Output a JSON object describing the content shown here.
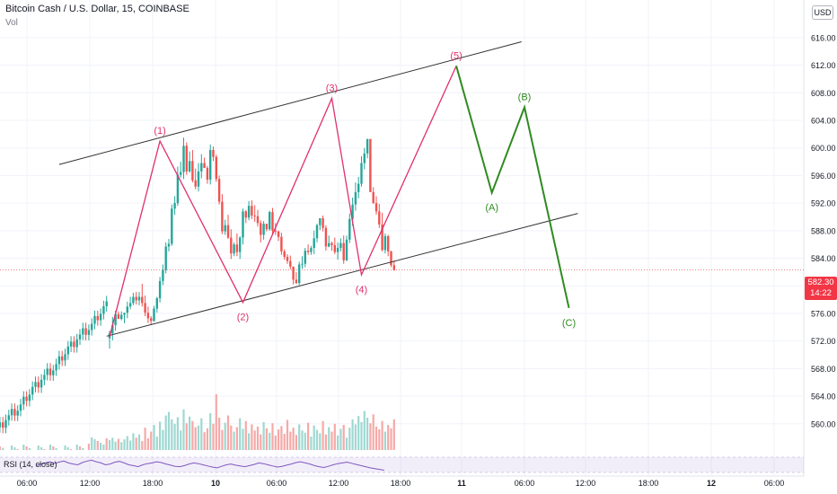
{
  "header": {
    "title": "Bitcoin Cash / U.S. Dollar, 15, COINBASE",
    "volume_label": "Vol",
    "currency": "USD"
  },
  "last_price": {
    "value": "582.30",
    "countdown": "14:22"
  },
  "rsi_label": "RSI (14, close)",
  "colors": {
    "up": "#26a69a",
    "down": "#ef5350",
    "pink": "#e0306c",
    "green": "#2f8a20",
    "channel": "#333333",
    "rsi": "#7e57c2"
  },
  "chart_data": {
    "type": "line",
    "y_axis": {
      "ylim": [
        557.5,
        619.5
      ],
      "ticks": [
        560,
        564,
        568,
        572,
        576,
        580,
        584,
        588,
        592,
        596,
        600,
        604,
        608,
        612,
        616
      ]
    },
    "x_axis": {
      "tick_labels": [
        "06:00",
        "12:00",
        "18:00",
        "10",
        "06:00",
        "12:00",
        "18:00",
        "11",
        "06:00",
        "12:00",
        "18:00",
        "12",
        "06:00"
      ]
    },
    "candles": {
      "opens": [
        572.4,
        573.1,
        574.3,
        575.9,
        575.2,
        575.8,
        576.1,
        577.0,
        577.5,
        578.4,
        577.9,
        578.4,
        577.5,
        576.1,
        575.3,
        574.9,
        576.7,
        578.2,
        580.7,
        582.3,
        585.7,
        586.1,
        591.2,
        592.0,
        596.1,
        596.5,
        600.3,
        596.6,
        598.1,
        595.3,
        594.4,
        596.6,
        597.8,
        597.1,
        595.4,
        599.7,
        598.7,
        595.5,
        592.2,
        587.9,
        588.8,
        587.0,
        584.7,
        586.0,
        584.9,
        587.0,
        590.8,
        589.9,
        591.6,
        590.2,
        590.1,
        589.1,
        587.4,
        589.0,
        588.2,
        590.7,
        588.0,
        587.9,
        587.1,
        585.0,
        584.2,
        583.6,
        582.8,
        580.9,
        580.4,
        583.1,
        583.2,
        585.1,
        584.9,
        585.5,
        586.9,
        588.8,
        589.8,
        588.4,
        585.7,
        586.2,
        585.9,
        584.9,
        585.5,
        586.2,
        583.7,
        586.7,
        589.7,
        591.8,
        593.6,
        594.8,
        597.8,
        599.2,
        601.3,
        593.6,
        592.0,
        590.8,
        588.9,
        585.2,
        587.2,
        585.0,
        583.0
      ],
      "highs": [
        573.5,
        575.5,
        576.4,
        576.3,
        576.3,
        576.1,
        577.7,
        578.4,
        579.0,
        579.1,
        579.1,
        580.3,
        578.6,
        577.0,
        575.6,
        577.1,
        578.4,
        581.3,
        583.1,
        586.3,
        586.8,
        591.8,
        593.0,
        597.3,
        598.0,
        601.5,
        600.8,
        599.5,
        599.7,
        597.0,
        597.8,
        599.1,
        598.6,
        597.4,
        600.5,
        600.2,
        599.0,
        596.0,
        593.3,
        589.6,
        590.3,
        588.2,
        586.3,
        587.6,
        587.2,
        591.2,
        591.0,
        592.3,
        592.4,
        591.7,
        591.0,
        589.5,
        589.4,
        589.0,
        590.9,
        591.3,
        589.1,
        588.0,
        587.7,
        585.3,
        584.6,
        584.4,
        582.8,
        582.0,
        583.5,
        584.3,
        585.5,
        586.0,
        585.8,
        588.0,
        589.0,
        589.8,
        590.2,
        588.8,
        587.3,
        586.4,
        587.0,
        586.3,
        586.9,
        587.3,
        587.3,
        590.5,
        592.8,
        595.0,
        595.8,
        598.8,
        600.0,
        601.3,
        601.3,
        594.3,
        593.0,
        591.9,
        590.6,
        587.6,
        587.4,
        585.1,
        583.7
      ],
      "lows": [
        570.9,
        572.1,
        573.5,
        575.2,
        575.0,
        574.6,
        575.3,
        576.6,
        577.2,
        577.3,
        577.2,
        577.0,
        575.6,
        574.6,
        574.3,
        574.8,
        576.1,
        577.6,
        580.1,
        581.8,
        585.0,
        585.8,
        590.3,
        591.6,
        595.7,
        595.5,
        596.1,
        596.4,
        595.0,
        594.0,
        593.7,
        595.6,
        597.1,
        594.8,
        594.7,
        598.1,
        595.1,
        591.8,
        587.5,
        587.4,
        586.8,
        583.9,
        584.3,
        584.3,
        583.9,
        586.0,
        589.1,
        589.5,
        589.7,
        589.3,
        588.6,
        586.3,
        586.7,
        587.9,
        588.0,
        587.4,
        587.4,
        586.5,
        584.5,
        583.8,
        583.2,
        582.4,
        580.2,
        580.3,
        580.1,
        582.5,
        582.7,
        584.5,
        584.5,
        584.6,
        586.3,
        588.1,
        587.9,
        585.1,
        585.6,
        585.1,
        584.6,
        583.8,
        585.0,
        583.2,
        583.6,
        586.2,
        588.7,
        590.9,
        592.7,
        594.4,
        596.9,
        598.5,
        593.6,
        591.9,
        590.3,
        588.4,
        585.0,
        584.7,
        584.3,
        582.7,
        582.2
      ],
      "closes": [
        573.1,
        574.3,
        575.9,
        575.2,
        575.8,
        576.1,
        577.0,
        577.5,
        578.4,
        577.9,
        578.4,
        577.5,
        576.1,
        575.3,
        574.9,
        576.7,
        578.2,
        580.7,
        582.3,
        585.7,
        586.1,
        591.2,
        592.0,
        596.1,
        596.5,
        600.3,
        596.6,
        598.1,
        595.3,
        594.4,
        596.6,
        597.8,
        597.1,
        595.4,
        599.7,
        598.7,
        595.5,
        592.2,
        587.9,
        588.8,
        587.0,
        584.7,
        586.0,
        584.9,
        587.0,
        590.8,
        589.9,
        591.6,
        590.2,
        590.1,
        589.1,
        587.4,
        589.0,
        588.2,
        590.7,
        588.0,
        587.9,
        587.1,
        585.0,
        584.2,
        583.6,
        582.8,
        580.9,
        580.4,
        583.1,
        583.2,
        585.1,
        584.9,
        585.5,
        586.9,
        588.8,
        589.8,
        588.4,
        585.7,
        586.2,
        585.9,
        584.9,
        585.5,
        586.2,
        583.7,
        586.7,
        589.7,
        591.8,
        593.6,
        594.8,
        597.8,
        599.2,
        601.3,
        593.6,
        592.0,
        590.8,
        588.9,
        585.2,
        587.2,
        585.0,
        583.0,
        582.3
      ]
    },
    "volume": [
      0.18,
      0.22,
      0.15,
      0.2,
      0.14,
      0.19,
      0.25,
      0.17,
      0.3,
      0.22,
      0.28,
      0.16,
      0.4,
      0.21,
      0.33,
      0.45,
      0.24,
      0.51,
      0.36,
      0.62,
      0.38,
      0.55,
      0.47,
      0.59,
      0.35,
      0.73,
      0.48,
      0.6,
      0.52,
      0.41,
      0.44,
      0.57,
      0.32,
      0.39,
      0.66,
      0.47,
      1.0,
      0.58,
      0.36,
      0.49,
      0.62,
      0.44,
      0.33,
      0.41,
      0.57,
      0.38,
      0.52,
      0.3,
      0.46,
      0.35,
      0.42,
      0.28,
      0.5,
      0.39,
      0.31,
      0.48,
      0.26,
      0.37,
      0.43,
      0.29,
      0.54,
      0.33,
      0.4,
      0.27,
      0.46,
      0.35,
      0.31,
      0.49,
      0.24,
      0.44,
      0.36,
      0.3,
      0.52,
      0.28,
      0.41,
      0.33,
      0.47,
      0.26,
      0.38,
      0.45,
      0.22,
      0.4,
      0.55,
      0.46,
      0.61,
      0.5,
      0.7,
      0.58,
      0.48,
      0.64,
      0.42,
      0.37,
      0.52,
      0.33,
      0.45,
      0.39,
      0.55
    ],
    "rsi": [
      48,
      52,
      55,
      58,
      54,
      57,
      60,
      55,
      52,
      50,
      56,
      60,
      62,
      58,
      55,
      50,
      52,
      57,
      59,
      55,
      50,
      48,
      45,
      50,
      53,
      55,
      58,
      56,
      52,
      49,
      46,
      45,
      48,
      52,
      55,
      53,
      50,
      47,
      44,
      42,
      46,
      50,
      52,
      49,
      47,
      45,
      48,
      51,
      55,
      53,
      50,
      47,
      44,
      46,
      49,
      52,
      56,
      58,
      55,
      52,
      48,
      45,
      43,
      46,
      50,
      53,
      55,
      57,
      54,
      51,
      48,
      45,
      42,
      40,
      38,
      36
    ],
    "wave_pink": [
      {
        "i": 0,
        "p": 572.6,
        "label": ""
      },
      {
        "i": 17,
        "p": 601.0,
        "label": "(1)"
      },
      {
        "i": 45,
        "p": 577.6,
        "label": "(2)"
      },
      {
        "i": 75,
        "p": 607.2,
        "label": "(3)"
      },
      {
        "i": 85,
        "p": 581.6,
        "label": "(4)"
      },
      {
        "i": 117,
        "p": 611.9,
        "label": "(5)"
      }
    ],
    "wave_green": [
      {
        "i": 117,
        "p": 611.9,
        "label": ""
      },
      {
        "i": 129,
        "p": 593.5,
        "label": "(A)"
      },
      {
        "i": 140,
        "p": 605.9,
        "label": "(B)"
      },
      {
        "i": 155,
        "p": 576.8,
        "label": "(C)"
      }
    ],
    "channel_upper": [
      {
        "i": -17,
        "p": 597.6
      },
      {
        "i": 139,
        "p": 615.4
      }
    ],
    "channel_lower": [
      {
        "i": -1,
        "p": 572.7
      },
      {
        "i": 158,
        "p": 590.5
      }
    ],
    "last_price_line": 582.3
  }
}
